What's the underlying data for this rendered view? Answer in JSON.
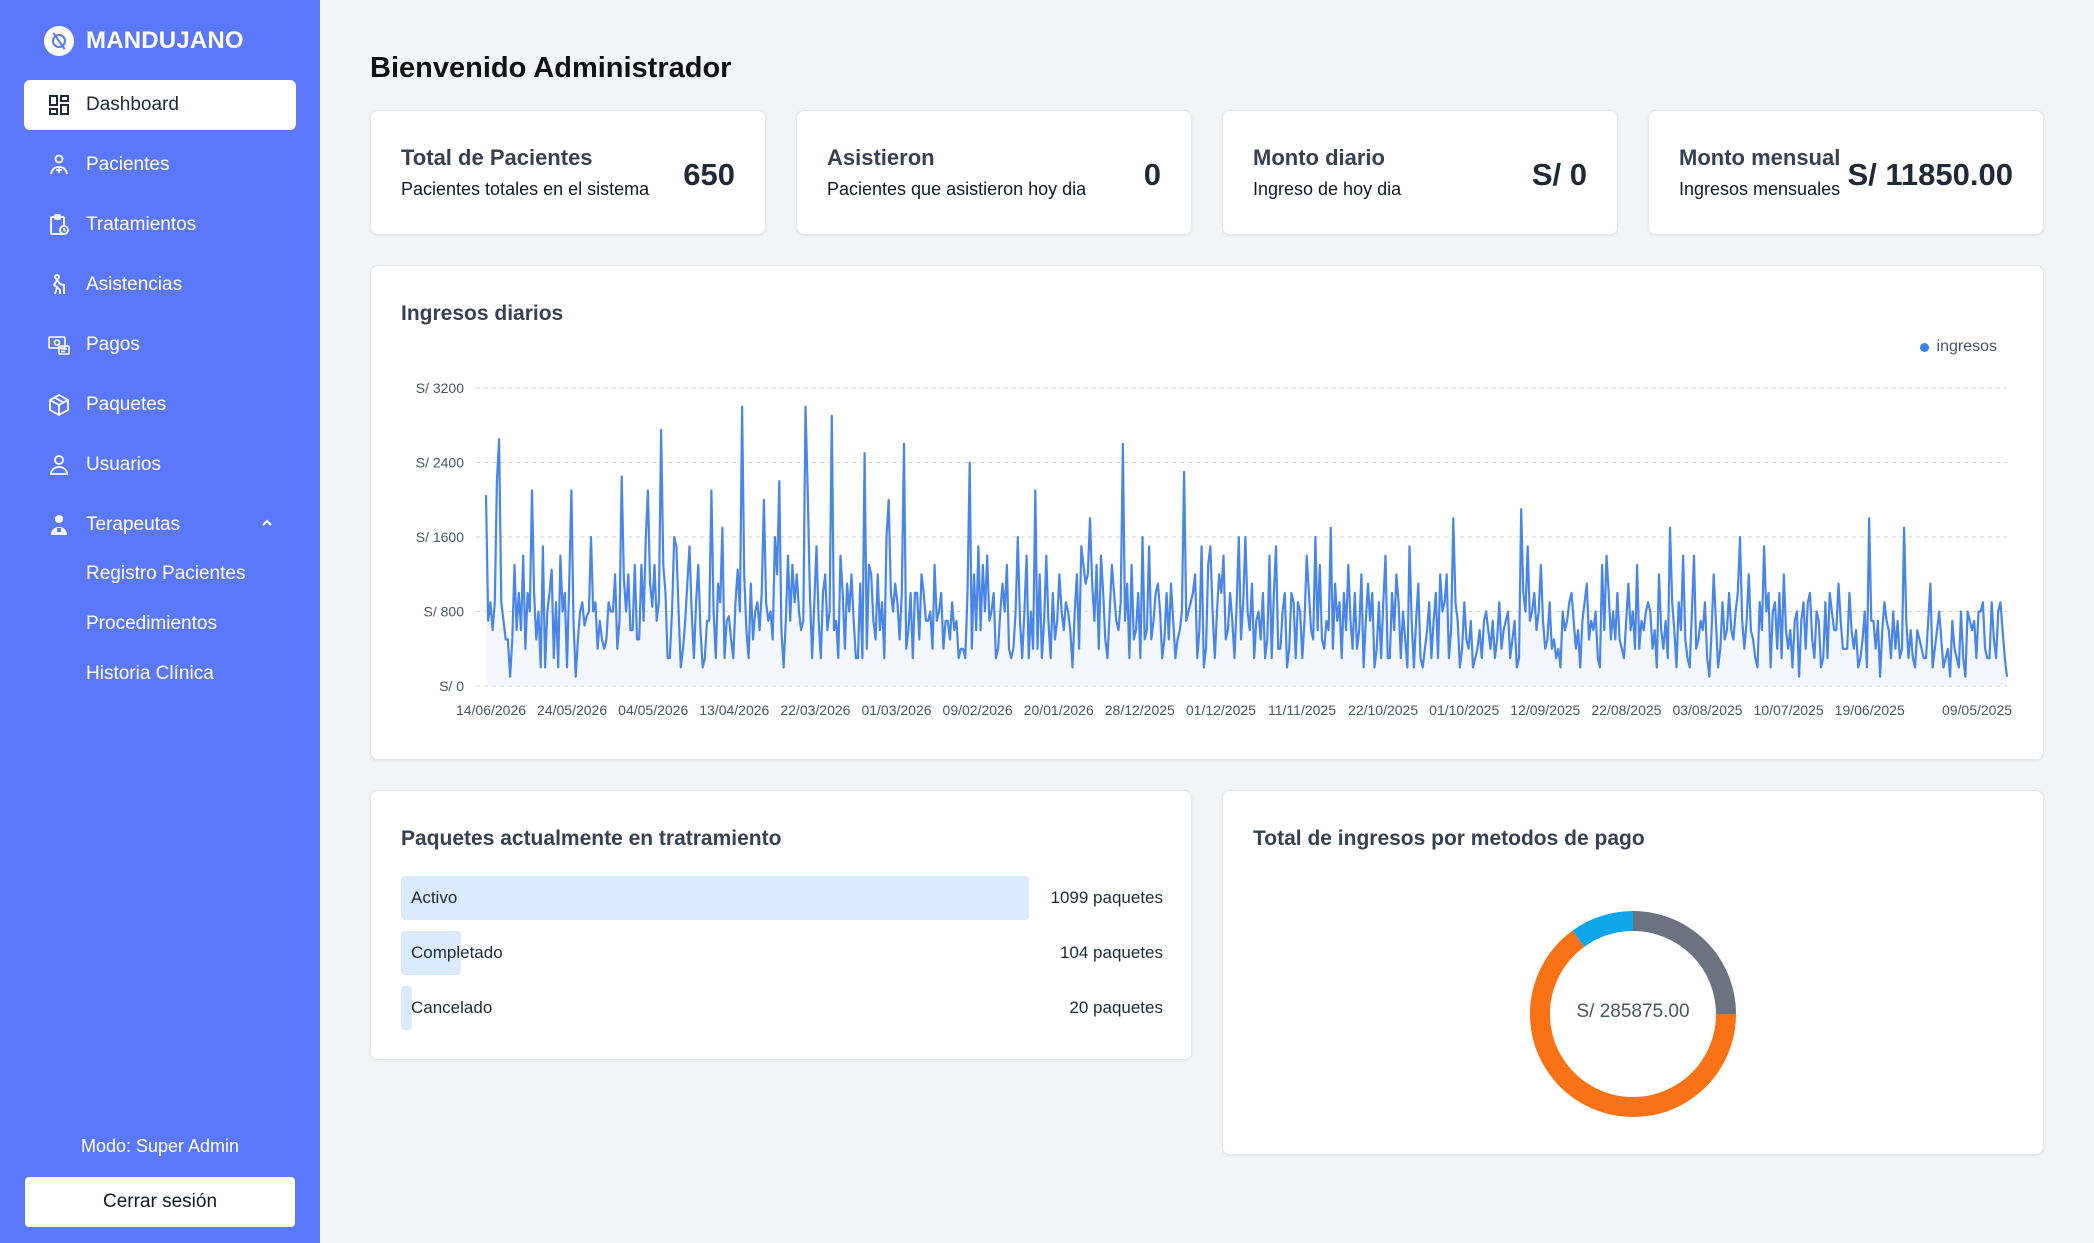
{
  "brand": {
    "name": "MANDUJANO"
  },
  "sidebar": {
    "items": [
      {
        "label": "Dashboard",
        "icon": "dashboard-icon",
        "active": true
      },
      {
        "label": "Pacientes",
        "icon": "patient-icon"
      },
      {
        "label": "Tratamientos",
        "icon": "clipboard-clock-icon"
      },
      {
        "label": "Asistencias",
        "icon": "walking-person-icon"
      },
      {
        "label": "Pagos",
        "icon": "payment-icon"
      },
      {
        "label": "Paquetes",
        "icon": "package-icon"
      },
      {
        "label": "Usuarios",
        "icon": "user-icon"
      },
      {
        "label": "Terapeutas",
        "icon": "therapist-icon",
        "expanded": true
      }
    ],
    "subitems": [
      "Registro Pacientes",
      "Procedimientos",
      "Historia Clínica"
    ],
    "mode": "Modo: Super Admin",
    "logout": "Cerrar sesión"
  },
  "main": {
    "title": "Bienvenido Administrador",
    "stats": [
      {
        "title": "Total de Pacientes",
        "subtitle": "Pacientes totales en el sistema",
        "value": "650"
      },
      {
        "title": "Asistieron",
        "subtitle": "Pacientes que asistieron hoy dia",
        "value": "0"
      },
      {
        "title": "Monto diario",
        "subtitle": "Ingreso de hoy dia",
        "value": "S/ 0"
      },
      {
        "title": "Monto mensual",
        "subtitle": "Ingresos mensuales",
        "value": "S/ 11850.00"
      }
    ],
    "income_chart_title": "Ingresos diarios",
    "packages_title": "Paquetes actualmente en tratramiento",
    "packages": [
      {
        "label": "Activo",
        "count": "1099 paquetes",
        "fraction": 1.0
      },
      {
        "label": "Completado",
        "count": "104 paquetes",
        "fraction": 0.095
      },
      {
        "label": "Cancelado",
        "count": "20 paquetes",
        "fraction": 0.018
      }
    ],
    "methods_title": "Total de ingresos por metodos de pago",
    "methods_total": "S/ 285875.00"
  },
  "chart_data": [
    {
      "type": "line",
      "title": "Ingresos diarios",
      "series": [
        {
          "name": "ingresos",
          "color": "#4a86e8",
          "values": [
            2050,
            700,
            900,
            600,
            900,
            2200,
            2650,
            900,
            700,
            500,
            500,
            100,
            500,
            1300,
            600,
            1000,
            600,
            1400,
            400,
            1000,
            800,
            2100,
            1000,
            500,
            800,
            200,
            1500,
            200,
            800,
            1000,
            1250,
            300,
            900,
            200,
            1400,
            800,
            1000,
            200,
            1100,
            2100,
            700,
            100,
            500,
            800,
            900,
            650,
            750,
            800,
            1600,
            800,
            900,
            400,
            700,
            500,
            400,
            500,
            900,
            800,
            800,
            1200,
            400,
            700,
            2250,
            1150,
            800,
            1200,
            600,
            600,
            1300,
            500,
            500,
            1300,
            700,
            1600,
            2100,
            1100,
            850,
            1300,
            700,
            900,
            2750,
            1300,
            1000,
            300,
            300,
            800,
            1600,
            1500,
            800,
            200,
            400,
            700,
            1100,
            1500,
            800,
            300,
            900,
            1300,
            600,
            200,
            300,
            700,
            700,
            2100,
            800,
            300,
            1100,
            900,
            1700,
            300,
            700,
            750,
            500,
            300,
            900,
            1250,
            800,
            3000,
            1200,
            600,
            300,
            1100,
            500,
            800,
            900,
            600,
            1000,
            2000,
            900,
            700,
            800,
            500,
            1600,
            1200,
            2200,
            600,
            200,
            700,
            1400,
            700,
            1300,
            900,
            1200,
            800,
            600,
            700,
            3000,
            2100,
            1000,
            300,
            900,
            1500,
            700,
            300,
            1000,
            1200,
            600,
            800,
            2900,
            600,
            700,
            300,
            1400,
            1000,
            400,
            1100,
            800,
            1200,
            700,
            300,
            300,
            1100,
            300,
            2500,
            400,
            1300,
            1200,
            700,
            500,
            1200,
            600,
            900,
            300,
            1600,
            2000,
            1000,
            800,
            1100,
            900,
            500,
            1000,
            2600,
            400,
            600,
            1000,
            300,
            1000,
            1000,
            500,
            1200,
            1000,
            700,
            700,
            800,
            400,
            1300,
            700,
            800,
            1000,
            400,
            700,
            700,
            500,
            900,
            600,
            700,
            300,
            400,
            400,
            300,
            1000,
            2400,
            400,
            1200,
            600,
            1500,
            600,
            1300,
            800,
            1400,
            700,
            800,
            1000,
            300,
            400,
            800,
            1100,
            800,
            1300,
            400,
            300,
            400,
            800,
            1600,
            700,
            300,
            800,
            1400,
            300,
            800,
            400,
            2100,
            400,
            1200,
            300,
            700,
            1400,
            700,
            300,
            1000,
            500,
            700,
            1200,
            800,
            600,
            900,
            800,
            600,
            200,
            800,
            1200,
            400,
            1500,
            1300,
            1100,
            1200,
            1800,
            1100,
            700,
            1300,
            400,
            1400,
            1000,
            500,
            300,
            800,
            1300,
            1000,
            700,
            600,
            900,
            2600,
            700,
            1100,
            300,
            1300,
            500,
            600,
            1000,
            300,
            1600,
            500,
            600,
            1500,
            500,
            700,
            1000,
            1100,
            800,
            300,
            500,
            1000,
            500,
            1100,
            700,
            300,
            500,
            600,
            800,
            2300,
            700,
            800,
            900,
            1000,
            1200,
            300,
            600,
            1500,
            200,
            400,
            1300,
            1500,
            800,
            300,
            800,
            1200,
            1000,
            1400,
            500,
            600,
            1000,
            700,
            300,
            900,
            1600,
            500,
            900,
            1600,
            800,
            600,
            1100,
            300,
            700,
            800,
            500,
            1000,
            300,
            500,
            1400,
            300,
            1000,
            1500,
            400,
            400,
            800,
            1000,
            200,
            400,
            1000,
            900,
            300,
            900,
            800,
            300,
            700,
            1400,
            1000,
            600,
            500,
            1600,
            600,
            1300,
            500,
            400,
            700,
            600,
            1700,
            400,
            1100,
            700,
            900,
            300,
            1000,
            600,
            1300,
            700,
            400,
            1000,
            400,
            600,
            1200,
            200,
            700,
            1100,
            700,
            1000,
            200,
            400,
            900,
            300,
            900,
            1400,
            300,
            300,
            1000,
            600,
            1200,
            900,
            300,
            800,
            500,
            200,
            1500,
            700,
            200,
            700,
            1100,
            300,
            200,
            400,
            600,
            900,
            300,
            700,
            1000,
            300,
            1200,
            800,
            900,
            1200,
            300,
            600,
            1800,
            900,
            700,
            200,
            400,
            900,
            500,
            400,
            700,
            200,
            300,
            400,
            600,
            300,
            700,
            800,
            600,
            400,
            700,
            300,
            500,
            900,
            400,
            600,
            700,
            800,
            300,
            500,
            700,
            200,
            300,
            1900,
            1000,
            800,
            1500,
            700,
            800,
            1000,
            600,
            800,
            1300,
            700,
            400,
            500,
            900,
            400,
            500,
            300,
            400,
            200,
            800,
            600,
            700,
            900,
            1000,
            700,
            400,
            600,
            200,
            700,
            900,
            1100,
            500,
            700,
            600,
            800,
            300,
            200,
            1300,
            600,
            1400,
            1000,
            500,
            800,
            500,
            1000,
            500,
            400,
            300,
            700,
            1100,
            600,
            800,
            400,
            1300,
            400,
            700,
            600,
            800,
            900,
            800,
            400,
            600,
            200,
            1200,
            600,
            400,
            700,
            300,
            1700,
            900,
            600,
            200,
            900,
            600,
            1400,
            500,
            300,
            200,
            800,
            1400,
            400,
            500,
            700,
            600,
            900,
            300,
            100,
            600,
            1200,
            700,
            200,
            400,
            900,
            500,
            600,
            1000,
            600,
            500,
            800,
            1000,
            1600,
            700,
            400,
            700,
            1200,
            600,
            500,
            300,
            200,
            900,
            600,
            1500,
            800,
            1000,
            200,
            800,
            900,
            400,
            1000,
            300,
            1200,
            600,
            400,
            600,
            200,
            700,
            800,
            100,
            700,
            900,
            400,
            900,
            1000,
            500,
            300,
            800,
            700,
            200,
            300,
            900,
            300,
            1000,
            800,
            600,
            600,
            1100,
            700,
            400,
            400,
            400,
            1000,
            600,
            400,
            600,
            200,
            300,
            500,
            800,
            200,
            1800,
            700,
            700,
            400,
            700,
            100,
            600,
            900,
            700,
            600,
            300,
            800,
            400,
            700,
            300,
            400,
            1700,
            700,
            300,
            600,
            300,
            200,
            600,
            500,
            400,
            300,
            300,
            700,
            1100,
            200,
            400,
            600,
            800,
            500,
            200,
            300,
            400,
            100,
            700,
            400,
            300,
            200,
            800,
            300,
            100,
            800,
            700,
            600,
            700,
            300,
            800,
            800,
            900,
            400,
            300,
            300,
            900,
            500,
            300,
            800,
            900,
            600,
            300,
            100
          ]
        }
      ],
      "x_tick_labels": [
        "14/06/2026",
        "24/05/2026",
        "04/05/2026",
        "13/04/2026",
        "22/03/2026",
        "01/03/2026",
        "09/02/2026",
        "20/01/2026",
        "28/12/2025",
        "01/12/2025",
        "11/11/2025",
        "22/10/2025",
        "01/10/2025",
        "12/09/2025",
        "22/08/2025",
        "03/08/2025",
        "10/07/2025",
        "19/06/2025",
        "09/05/2025"
      ],
      "y_tick_labels": [
        "S/ 0",
        "S/ 800",
        "S/ 1600",
        "S/ 2400",
        "S/ 3200"
      ],
      "ylim": [
        0,
        3200
      ],
      "grid": true,
      "legend": "top-right"
    },
    {
      "type": "pie",
      "title": "Total de ingresos por metodos de pago",
      "center_label": "S/ 285875.00",
      "slices": [
        {
          "value": 0.25,
          "color": "#6b7280"
        },
        {
          "value": 0.65,
          "color": "#f97316"
        },
        {
          "value": 0.1,
          "color": "#0ea5e9"
        }
      ]
    }
  ]
}
